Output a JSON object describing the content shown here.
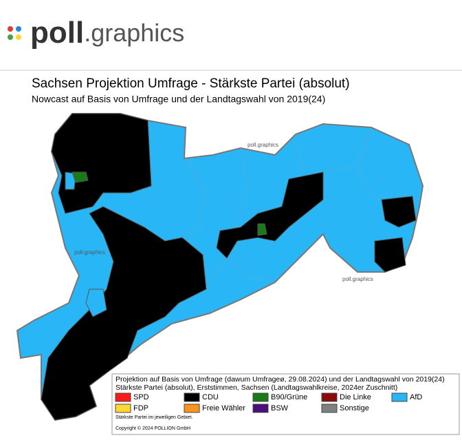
{
  "header": {
    "brand": "poll",
    "brand_suffix": ".graphics"
  },
  "map": {
    "title": "Sachsen Projektion Umfrage - Stärkste Partei (absolut)",
    "subtitle": "Nowcast auf Basis von Umfrage und der Landtagswahl von 2019(24)",
    "watermarks": [
      "poll.graphics",
      "poll.graphics",
      "poll.graphics"
    ]
  },
  "legend": {
    "heading": [
      "Projektion auf Basis von Umfrage (dawum Umfrageø, 29.08.2024) und der Landtagswahl von 2019(24)",
      "Stärkste Partei (absolut), Erststimmen, Sachsen (Landtagswahlkreise, 2024er Zuschnitt)"
    ],
    "items": [
      {
        "label": "SPD",
        "color": "#ff1a1a"
      },
      {
        "label": "CDU",
        "color": "#000000"
      },
      {
        "label": "B90/Grüne",
        "color": "#1a7a1a"
      },
      {
        "label": "Die Linke",
        "color": "#8b0a0a"
      },
      {
        "label": "AfD",
        "color": "#29b6f6"
      },
      {
        "label": "FDP",
        "color": "#ffd633"
      },
      {
        "label": "Freie Wähler",
        "color": "#f7931e"
      },
      {
        "label": "BSW",
        "color": "#4b0f7a"
      },
      {
        "label": "Sonstige",
        "color": "#808080"
      }
    ],
    "note": "Stärkste Partei im jeweiligen Gebiet.",
    "copyright": "Copyright © 2024 POLLION GmbH"
  }
}
